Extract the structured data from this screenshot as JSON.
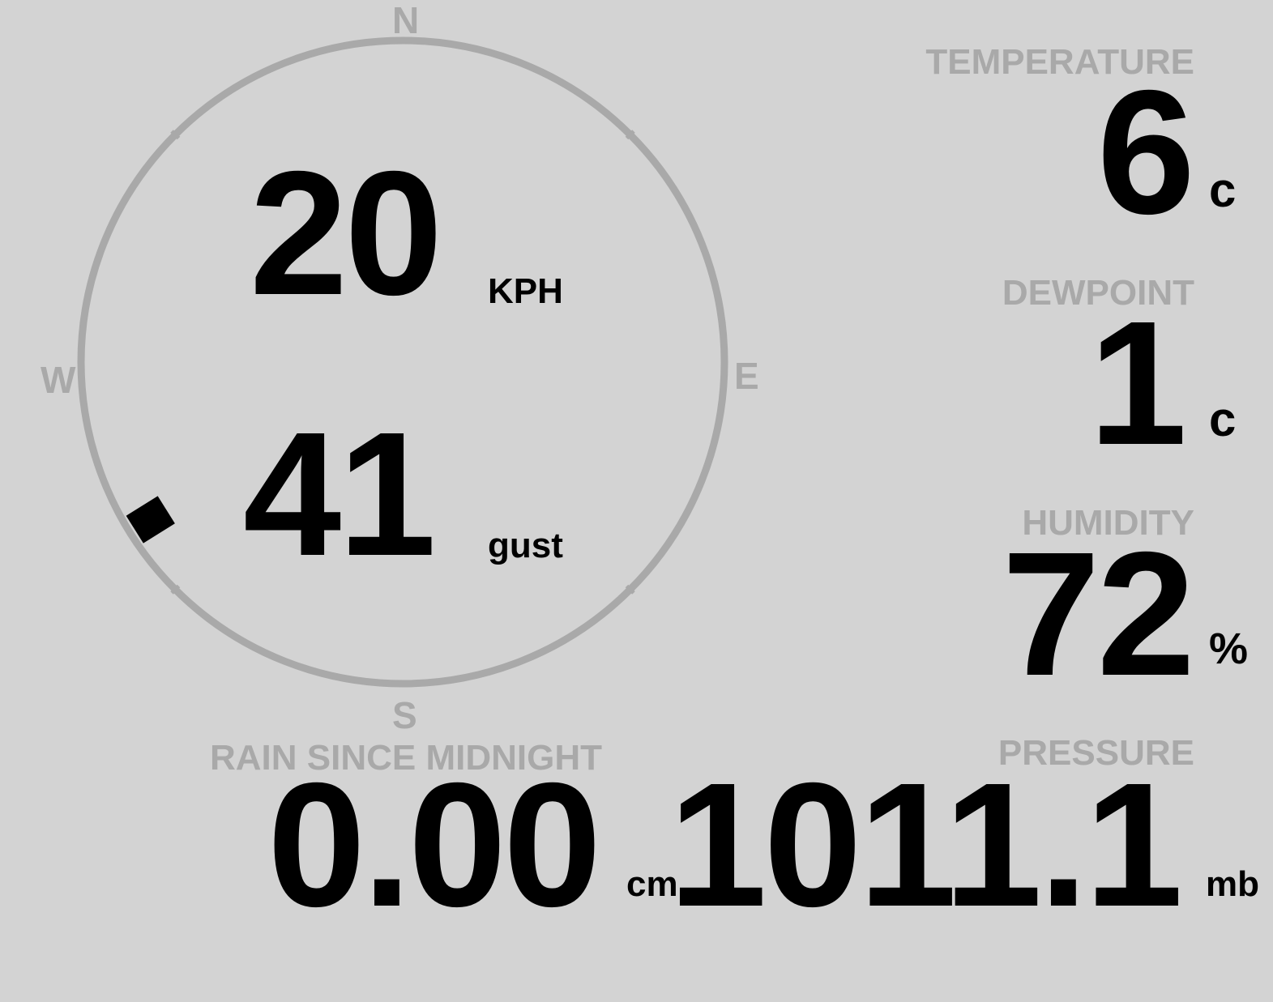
{
  "compass": {
    "north": "N",
    "east": "E",
    "south": "S",
    "west": "W",
    "wind_direction_deg": 238,
    "ring_color": "#a9a9a9",
    "marker_color": "#000000"
  },
  "wind": {
    "speed": "20",
    "speed_unit": "KPH",
    "gust": "41",
    "gust_unit": "gust"
  },
  "temperature": {
    "label": "TEMPERATURE",
    "value": "6",
    "unit": "c"
  },
  "dewpoint": {
    "label": "DEWPOINT",
    "value": "1",
    "unit": "c"
  },
  "humidity": {
    "label": "HUMIDITY",
    "value": "72",
    "unit": "%"
  },
  "pressure": {
    "label": "PRESSURE",
    "value": "1011.1",
    "unit": "mb"
  },
  "rain": {
    "label": "RAIN SINCE MIDNIGHT",
    "value": "0.00",
    "unit": "cm"
  },
  "colors": {
    "background": "#d3d3d3",
    "label": "#a9a9a9",
    "value": "#000000"
  }
}
